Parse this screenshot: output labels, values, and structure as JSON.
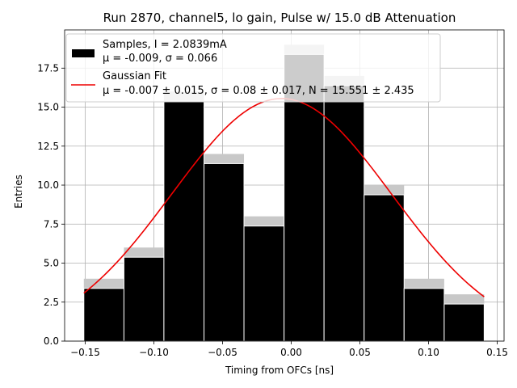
{
  "chart_data": {
    "type": "bar",
    "title": "Run 2870, channel5, lo gain, Pulse w/ 15.0 dB Attenuation",
    "xlabel": "Timing from OFCs [ns]",
    "ylabel": "Entries",
    "xlim": [
      -0.165,
      0.155
    ],
    "ylim": [
      0,
      19.95
    ],
    "grid": true,
    "x_ticks": [
      {
        "value": -0.15,
        "label": "−0.15"
      },
      {
        "value": -0.1,
        "label": "−0.10"
      },
      {
        "value": -0.05,
        "label": "−0.05"
      },
      {
        "value": 0.0,
        "label": "0.00"
      },
      {
        "value": 0.05,
        "label": "0.05"
      },
      {
        "value": 0.1,
        "label": "0.10"
      },
      {
        "value": 0.15,
        "label": "0.15"
      }
    ],
    "y_ticks": [
      {
        "value": 0.0,
        "label": "0.0"
      },
      {
        "value": 2.5,
        "label": "2.5"
      },
      {
        "value": 5.0,
        "label": "5.0"
      },
      {
        "value": 7.5,
        "label": "7.5"
      },
      {
        "value": 10.0,
        "label": "10.0"
      },
      {
        "value": 12.5,
        "label": "12.5"
      },
      {
        "value": 15.0,
        "label": "15.0"
      },
      {
        "value": 17.5,
        "label": "17.5"
      }
    ],
    "histogram": {
      "name": "Samples",
      "bin_edges": [
        -0.151,
        -0.1218,
        -0.0927,
        -0.0635,
        -0.0344,
        -0.0052,
        0.0239,
        0.0531,
        0.0822,
        0.1114,
        0.1405
      ],
      "counts": [
        4,
        6,
        16,
        12,
        8,
        19,
        17,
        10,
        4,
        3
      ],
      "color": "#000000",
      "edge_color": "#ffffff",
      "background_color": "#c8c8c8"
    },
    "fit": {
      "name": "Gaussian Fit",
      "mu": -0.007,
      "sigma": 0.08,
      "N": 15.551,
      "x_range": [
        -0.151,
        0.1405
      ],
      "color": "#ee0000"
    },
    "legend": {
      "placement": "top-left",
      "entries": [
        {
          "line1": "Samples, I = 2.0839mA",
          "line2": "μ = -0.009, σ = 0.066"
        },
        {
          "line1": "Gaussian Fit",
          "line2": "μ = -0.007 ± 0.015, σ = 0.08 ± 0.017, N = 15.551 ± 2.435"
        }
      ]
    }
  }
}
